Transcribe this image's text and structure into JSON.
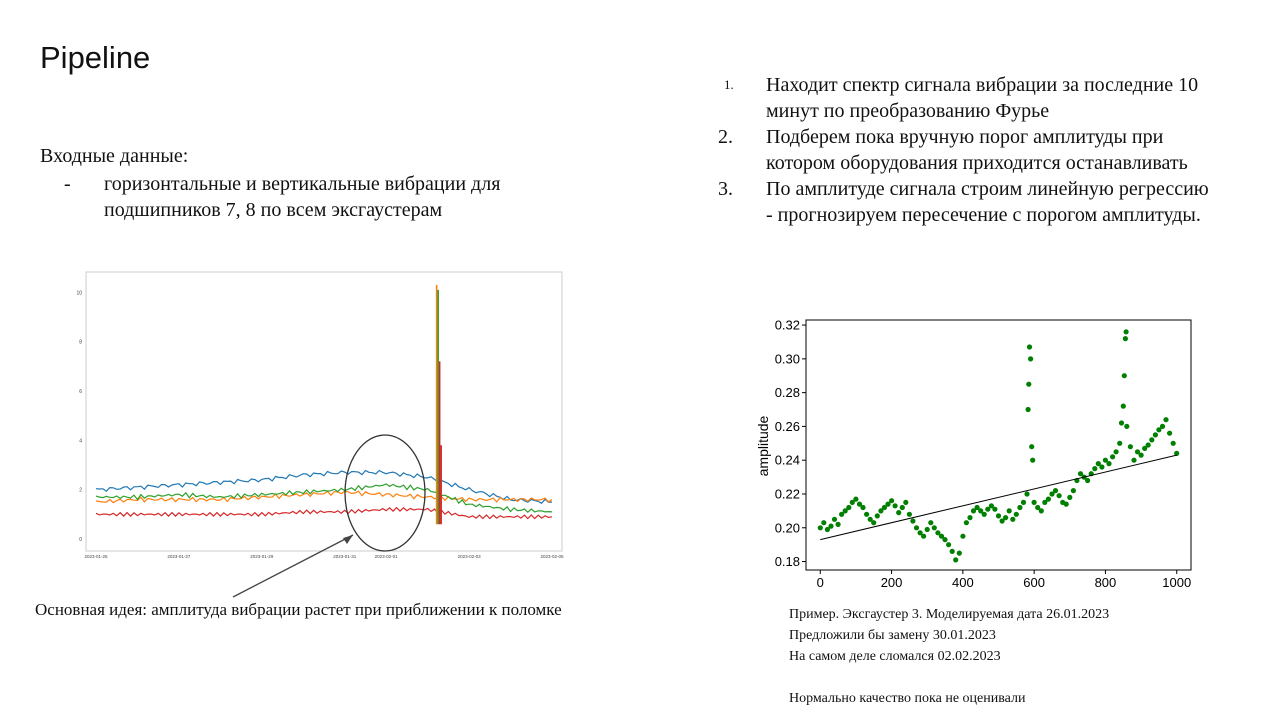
{
  "title": "Pipeline",
  "input": {
    "heading": "Входные данные:",
    "items": [
      {
        "bullet": "-",
        "text": "горизонтальные и вертикальные вибрации для подшипников 7, 8 по всем эксгаустерам"
      }
    ]
  },
  "steps": [
    {
      "num": "1.",
      "text": "Находит спектр сигнала вибрации за последние 10 минут по преобразованию Фурье"
    },
    {
      "num": "2.",
      "text": "Подберем пока вручную порог амплитуды при котором оборудования приходится останавливать"
    },
    {
      "num": "3.",
      "text": "По амплитуде сигнала строим линейную регрессию - прогнозируем пересечение с порогом амплитуды."
    }
  ],
  "idea": "Основная идея: амплитуда вибрации растет при приближении к поломке",
  "caption": [
    "Пример. Эксгаустер 3. Моделируемая дата 26.01.2023",
    "Предложили бы замену 30.01.2023",
    "На самом деле сломался 02.02.2023",
    "",
    "Нормально качество пока не оценивали"
  ],
  "chart_data": [
    {
      "type": "line",
      "title": "",
      "xlabel": "",
      "ylabel": "",
      "x_tick_labels": [
        "2023-01-25",
        "2023-01-27",
        "2023-01-29",
        "2023-01-31",
        "2023-02-01",
        "2023-02-03",
        "2023-02-05"
      ],
      "y_tick_labels": [
        "0",
        "2",
        "4",
        "6",
        "8",
        "10"
      ],
      "ylim": [
        0,
        10.5
      ],
      "x_start": "2023-01-25",
      "x_end": "2023-02-05",
      "series": [
        {
          "color": "#1f77b4",
          "x": [
            "2023-01-25",
            "2023-01-26",
            "2023-01-27",
            "2023-01-28",
            "2023-01-29",
            "2023-01-30",
            "2023-01-31",
            "2023-02-01",
            "2023-02-02",
            "2023-02-03",
            "2023-02-04",
            "2023-02-05"
          ],
          "values": [
            2.0,
            2.1,
            2.2,
            2.3,
            2.4,
            2.6,
            2.7,
            2.7,
            2.5,
            2.0,
            1.6,
            1.5
          ]
        },
        {
          "color": "#ff7f0e",
          "x": [
            "2023-01-25",
            "2023-01-26",
            "2023-01-27",
            "2023-01-28",
            "2023-01-29",
            "2023-01-30",
            "2023-01-31",
            "2023-02-01",
            "2023-02-02",
            "2023-02-03",
            "2023-02-04",
            "2023-02-05"
          ],
          "values": [
            1.5,
            1.6,
            1.6,
            1.6,
            1.7,
            1.8,
            1.9,
            1.8,
            1.7,
            1.6,
            1.6,
            1.6
          ]
        },
        {
          "color": "#2ca02c",
          "x": [
            "2023-01-25",
            "2023-01-26",
            "2023-01-27",
            "2023-01-28",
            "2023-01-29",
            "2023-01-30",
            "2023-01-31",
            "2023-02-01",
            "2023-02-02",
            "2023-02-03",
            "2023-02-04",
            "2023-02-05"
          ],
          "values": [
            1.7,
            1.7,
            1.8,
            1.7,
            1.8,
            1.9,
            2.0,
            2.2,
            2.0,
            1.4,
            1.2,
            1.1
          ]
        },
        {
          "color": "#d62728",
          "x": [
            "2023-01-25",
            "2023-01-26",
            "2023-01-27",
            "2023-01-28",
            "2023-01-29",
            "2023-01-30",
            "2023-01-31",
            "2023-02-01",
            "2023-02-02",
            "2023-02-03",
            "2023-02-04",
            "2023-02-05"
          ],
          "values": [
            1.0,
            1.0,
            1.0,
            1.0,
            1.0,
            1.1,
            1.1,
            1.2,
            1.2,
            0.9,
            0.9,
            0.9
          ]
        }
      ],
      "spikes": [
        {
          "color": "#ff7f0e",
          "x": "2023-02-02",
          "value": 10.3
        },
        {
          "color": "#2ca02c",
          "x": "2023-02-02",
          "value": 10.1
        },
        {
          "color": "#d62728",
          "x": "2023-02-02",
          "value": 7.2
        },
        {
          "color": "#d62728",
          "x": "2023-02-02",
          "value": 3.8
        }
      ]
    },
    {
      "type": "scatter",
      "title": "",
      "xlabel": "",
      "ylabel": "amplitude",
      "xlim": [
        -40,
        1040
      ],
      "ylim": [
        0.175,
        0.323
      ],
      "x_ticks": [
        0,
        200,
        400,
        600,
        800,
        1000
      ],
      "y_ticks": [
        0.18,
        0.2,
        0.22,
        0.24,
        0.26,
        0.28,
        0.3,
        0.32
      ],
      "point_color": "#008000",
      "points": [
        [
          0,
          0.2
        ],
        [
          10,
          0.203
        ],
        [
          20,
          0.199
        ],
        [
          30,
          0.201
        ],
        [
          40,
          0.205
        ],
        [
          50,
          0.202
        ],
        [
          60,
          0.208
        ],
        [
          70,
          0.21
        ],
        [
          80,
          0.212
        ],
        [
          90,
          0.215
        ],
        [
          100,
          0.217
        ],
        [
          110,
          0.214
        ],
        [
          120,
          0.212
        ],
        [
          130,
          0.208
        ],
        [
          140,
          0.205
        ],
        [
          150,
          0.203
        ],
        [
          160,
          0.207
        ],
        [
          170,
          0.21
        ],
        [
          180,
          0.212
        ],
        [
          190,
          0.214
        ],
        [
          200,
          0.216
        ],
        [
          210,
          0.213
        ],
        [
          220,
          0.209
        ],
        [
          230,
          0.212
        ],
        [
          240,
          0.215
        ],
        [
          250,
          0.208
        ],
        [
          260,
          0.204
        ],
        [
          270,
          0.2
        ],
        [
          280,
          0.197
        ],
        [
          290,
          0.195
        ],
        [
          300,
          0.199
        ],
        [
          310,
          0.203
        ],
        [
          320,
          0.2
        ],
        [
          330,
          0.197
        ],
        [
          340,
          0.195
        ],
        [
          350,
          0.193
        ],
        [
          360,
          0.19
        ],
        [
          370,
          0.186
        ],
        [
          380,
          0.181
        ],
        [
          390,
          0.185
        ],
        [
          400,
          0.195
        ],
        [
          410,
          0.203
        ],
        [
          420,
          0.206
        ],
        [
          430,
          0.21
        ],
        [
          440,
          0.212
        ],
        [
          450,
          0.21
        ],
        [
          460,
          0.208
        ],
        [
          470,
          0.211
        ],
        [
          480,
          0.213
        ],
        [
          490,
          0.211
        ],
        [
          500,
          0.207
        ],
        [
          510,
          0.204
        ],
        [
          520,
          0.206
        ],
        [
          530,
          0.21
        ],
        [
          540,
          0.205
        ],
        [
          550,
          0.208
        ],
        [
          560,
          0.212
        ],
        [
          570,
          0.215
        ],
        [
          580,
          0.22
        ],
        [
          583,
          0.27
        ],
        [
          585,
          0.285
        ],
        [
          587,
          0.307
        ],
        [
          590,
          0.3
        ],
        [
          593,
          0.248
        ],
        [
          596,
          0.24
        ],
        [
          600,
          0.215
        ],
        [
          610,
          0.212
        ],
        [
          620,
          0.21
        ],
        [
          630,
          0.215
        ],
        [
          640,
          0.217
        ],
        [
          650,
          0.22
        ],
        [
          660,
          0.222
        ],
        [
          670,
          0.219
        ],
        [
          680,
          0.215
        ],
        [
          690,
          0.214
        ],
        [
          700,
          0.218
        ],
        [
          710,
          0.222
        ],
        [
          720,
          0.228
        ],
        [
          730,
          0.232
        ],
        [
          740,
          0.23
        ],
        [
          750,
          0.228
        ],
        [
          760,
          0.232
        ],
        [
          770,
          0.235
        ],
        [
          780,
          0.238
        ],
        [
          790,
          0.236
        ],
        [
          800,
          0.24
        ],
        [
          810,
          0.238
        ],
        [
          820,
          0.242
        ],
        [
          830,
          0.245
        ],
        [
          840,
          0.25
        ],
        [
          845,
          0.262
        ],
        [
          850,
          0.272
        ],
        [
          853,
          0.29
        ],
        [
          856,
          0.312
        ],
        [
          858,
          0.316
        ],
        [
          860,
          0.26
        ],
        [
          870,
          0.248
        ],
        [
          880,
          0.24
        ],
        [
          890,
          0.245
        ],
        [
          900,
          0.243
        ],
        [
          910,
          0.247
        ],
        [
          920,
          0.249
        ],
        [
          930,
          0.252
        ],
        [
          940,
          0.255
        ],
        [
          950,
          0.258
        ],
        [
          960,
          0.26
        ],
        [
          970,
          0.264
        ],
        [
          980,
          0.256
        ],
        [
          990,
          0.25
        ],
        [
          1000,
          0.244
        ]
      ],
      "trend_line": {
        "x": [
          0,
          1000
        ],
        "y": [
          0.193,
          0.243
        ]
      }
    }
  ]
}
